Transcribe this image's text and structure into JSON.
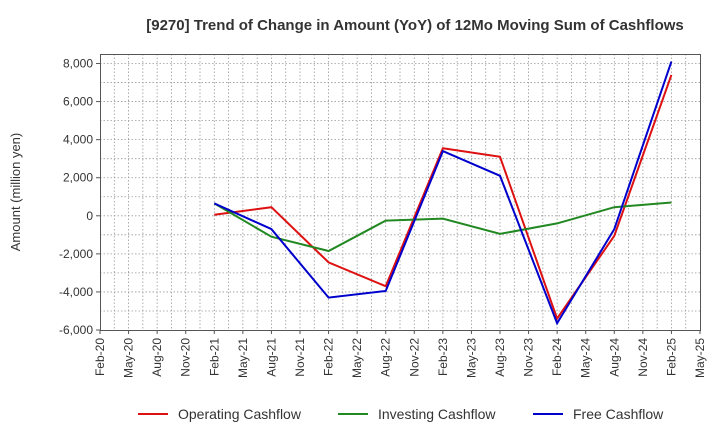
{
  "chart_data": {
    "type": "line",
    "title": "[9270]  Trend of Change in Amount (YoY) of 12Mo Moving Sum of Cashflows",
    "xlabel": "",
    "ylabel": "Amount (million yen)",
    "categories": [
      "Feb-20",
      "May-20",
      "Aug-20",
      "Nov-20",
      "Feb-21",
      "May-21",
      "Aug-21",
      "Nov-21",
      "Feb-22",
      "May-22",
      "Aug-22",
      "Nov-22",
      "Feb-23",
      "May-23",
      "Aug-23",
      "Nov-23",
      "Feb-24",
      "May-24",
      "Aug-24",
      "Nov-24",
      "Feb-25",
      "May-25"
    ],
    "ylim": [
      -6000,
      8500
    ],
    "yticks": [
      8000,
      6000,
      4000,
      2000,
      0,
      -2000,
      -4000,
      -6000
    ],
    "ytick_labels": [
      "8,000",
      "6,000",
      "4,000",
      "2,000",
      "0",
      "-2,000",
      "-4,000",
      "-6,000"
    ],
    "grid": true,
    "legend_position": "bottom",
    "series": [
      {
        "name": "Operating Cashflow",
        "color": "#dd1111",
        "values": [
          null,
          null,
          null,
          null,
          50,
          null,
          450,
          null,
          -2450,
          null,
          -3700,
          null,
          3550,
          null,
          3100,
          null,
          -5400,
          null,
          -1050,
          null,
          7400,
          null
        ]
      },
      {
        "name": "Investing Cashflow",
        "color": "#228822",
        "values": [
          null,
          null,
          null,
          null,
          650,
          null,
          -1100,
          null,
          -1850,
          null,
          -250,
          null,
          -150,
          null,
          -950,
          null,
          -400,
          null,
          450,
          null,
          700,
          null
        ]
      },
      {
        "name": "Free Cashflow",
        "color": "#0000cc",
        "values": [
          null,
          null,
          null,
          null,
          650,
          null,
          -700,
          null,
          -4300,
          null,
          -3950,
          null,
          3400,
          null,
          2100,
          null,
          -5650,
          null,
          -700,
          null,
          8100,
          null
        ]
      }
    ]
  }
}
